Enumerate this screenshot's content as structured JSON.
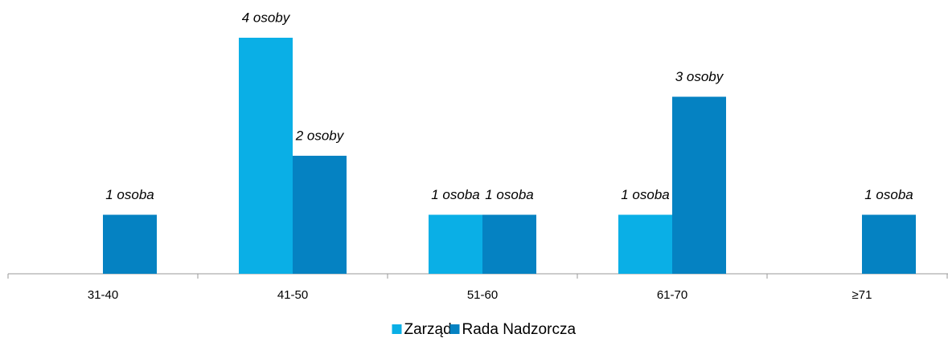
{
  "chart_data": {
    "type": "bar",
    "categories": [
      "31-40",
      "41-50",
      "51-60",
      "61-70",
      "≥71"
    ],
    "series": [
      {
        "name": "Zarząd",
        "color": "#0aafe6",
        "values": [
          null,
          4,
          1,
          1,
          null
        ],
        "value_labels": [
          null,
          "4 osoby",
          "1 osoba",
          "1 osoba",
          null
        ]
      },
      {
        "name": "Rada Nadzorcza",
        "color": "#0582c2",
        "values": [
          1,
          2,
          1,
          3,
          1
        ],
        "value_labels": [
          "1 osoba",
          "2 osoby",
          "1 osoba",
          "3 osoby",
          "1 osoba"
        ]
      }
    ],
    "ylim": [
      0,
      4
    ],
    "legend": "bottom"
  }
}
